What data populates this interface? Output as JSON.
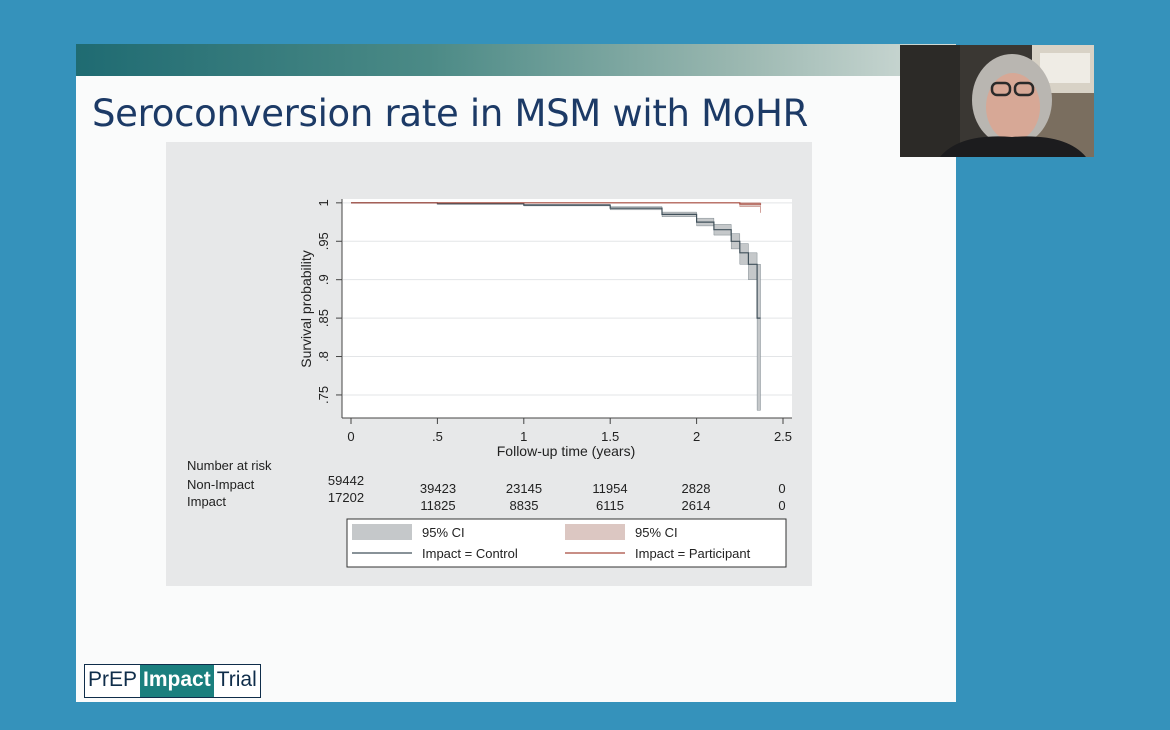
{
  "slide": {
    "title": "Seroconversion rate in MSM with MoHR"
  },
  "logo": {
    "part1": "PrEP",
    "part2": "Impact",
    "part3": "Trial"
  },
  "chart_data": {
    "type": "line",
    "xlabel": "Follow-up time (years)",
    "ylabel": "Survival probability",
    "xlim": [
      0,
      2.5
    ],
    "ylim": [
      0.72,
      1.005
    ],
    "x_ticks": [
      {
        "v": 0,
        "label": "0"
      },
      {
        "v": 0.5,
        "label": ".5"
      },
      {
        "v": 1,
        "label": "1"
      },
      {
        "v": 1.5,
        "label": "1.5"
      },
      {
        "v": 2,
        "label": "2"
      },
      {
        "v": 2.5,
        "label": "2.5"
      }
    ],
    "y_ticks": [
      {
        "v": 1,
        "label": "1"
      },
      {
        "v": 0.95,
        "label": ".95"
      },
      {
        "v": 0.9,
        "label": ".9"
      },
      {
        "v": 0.85,
        "label": ".85"
      },
      {
        "v": 0.8,
        "label": ".8"
      },
      {
        "v": 0.75,
        "label": ".75"
      }
    ],
    "grid": true,
    "series": [
      {
        "name": "Impact = Control",
        "color": "#40505a",
        "ci_color": "#c5c8ca",
        "x": [
          0,
          0.5,
          1.0,
          1.5,
          1.8,
          2.0,
          2.1,
          2.2,
          2.25,
          2.3,
          2.35,
          2.37
        ],
        "y": [
          1.0,
          0.999,
          0.997,
          0.993,
          0.985,
          0.975,
          0.965,
          0.95,
          0.935,
          0.92,
          0.85,
          0.85
        ],
        "ci_low": [
          1.0,
          0.998,
          0.996,
          0.991,
          0.982,
          0.97,
          0.958,
          0.94,
          0.92,
          0.9,
          0.73,
          0.73
        ],
        "ci_high": [
          1.0,
          0.9995,
          0.998,
          0.995,
          0.988,
          0.98,
          0.972,
          0.96,
          0.947,
          0.935,
          0.92,
          0.92
        ]
      },
      {
        "name": "Impact = Participant",
        "color": "#a84a3e",
        "ci_color": "#dcc7c2",
        "x": [
          0,
          2.25,
          2.37
        ],
        "y": [
          1.0,
          0.9985,
          0.9975
        ],
        "ci_low": [
          1.0,
          0.995,
          0.987
        ],
        "ci_high": [
          1.0,
          1.0,
          1.0
        ]
      }
    ],
    "risk_table": {
      "title": "Number at risk",
      "rows": [
        {
          "label": "Non-Impact",
          "values": [
            "59442",
            "39423",
            "23145",
            "11954",
            "2828",
            "0"
          ]
        },
        {
          "label": "Impact",
          "values": [
            "17202",
            "11825",
            "8835",
            "6115",
            "2614",
            "0"
          ]
        }
      ]
    },
    "legend": {
      "ci_label_1": "95% CI",
      "ci_label_2": "95% CI",
      "line_label_1": "Impact = Control",
      "line_label_2": "Impact = Participant"
    }
  }
}
